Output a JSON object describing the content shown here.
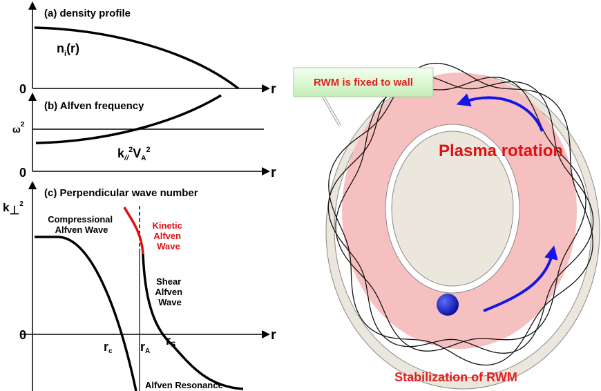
{
  "left": {
    "a": {
      "title": "(a) density profile",
      "label_main": "n",
      "label_sub": "i",
      "label_rest": "(r)",
      "zero": "0",
      "axis": "r"
    },
    "b": {
      "title": "(b) Alfven frequency",
      "omega": "ω",
      "omega_sup": "2",
      "k": "k",
      "k_sub": "//",
      "k_sup": "2",
      "v": "V",
      "v_sub": "A",
      "v_sup": "2",
      "zero": "0",
      "axis": "r"
    },
    "c": {
      "title": "(c) Perpendicular wave number",
      "k": "k",
      "k_sub": "⊥",
      "k_sup": "2",
      "compressional": [
        "Compressional",
        "Alfven Wave"
      ],
      "kinetic": [
        "Kinetic",
        "Alfven",
        "Wave"
      ],
      "shear": [
        "Shear",
        "Alfven",
        "Wave"
      ],
      "zero": "0",
      "axis": "r",
      "rc": "r",
      "rc_sub": "c",
      "ra": "r",
      "ra_sub": "A",
      "rs": "r",
      "rs_sub": "S",
      "resonance": "Alfven Resonance"
    }
  },
  "right": {
    "callout": "RWM is fixed to wall",
    "rotation": "Plasma rotation",
    "caption": "Stabilization of RWM"
  }
}
